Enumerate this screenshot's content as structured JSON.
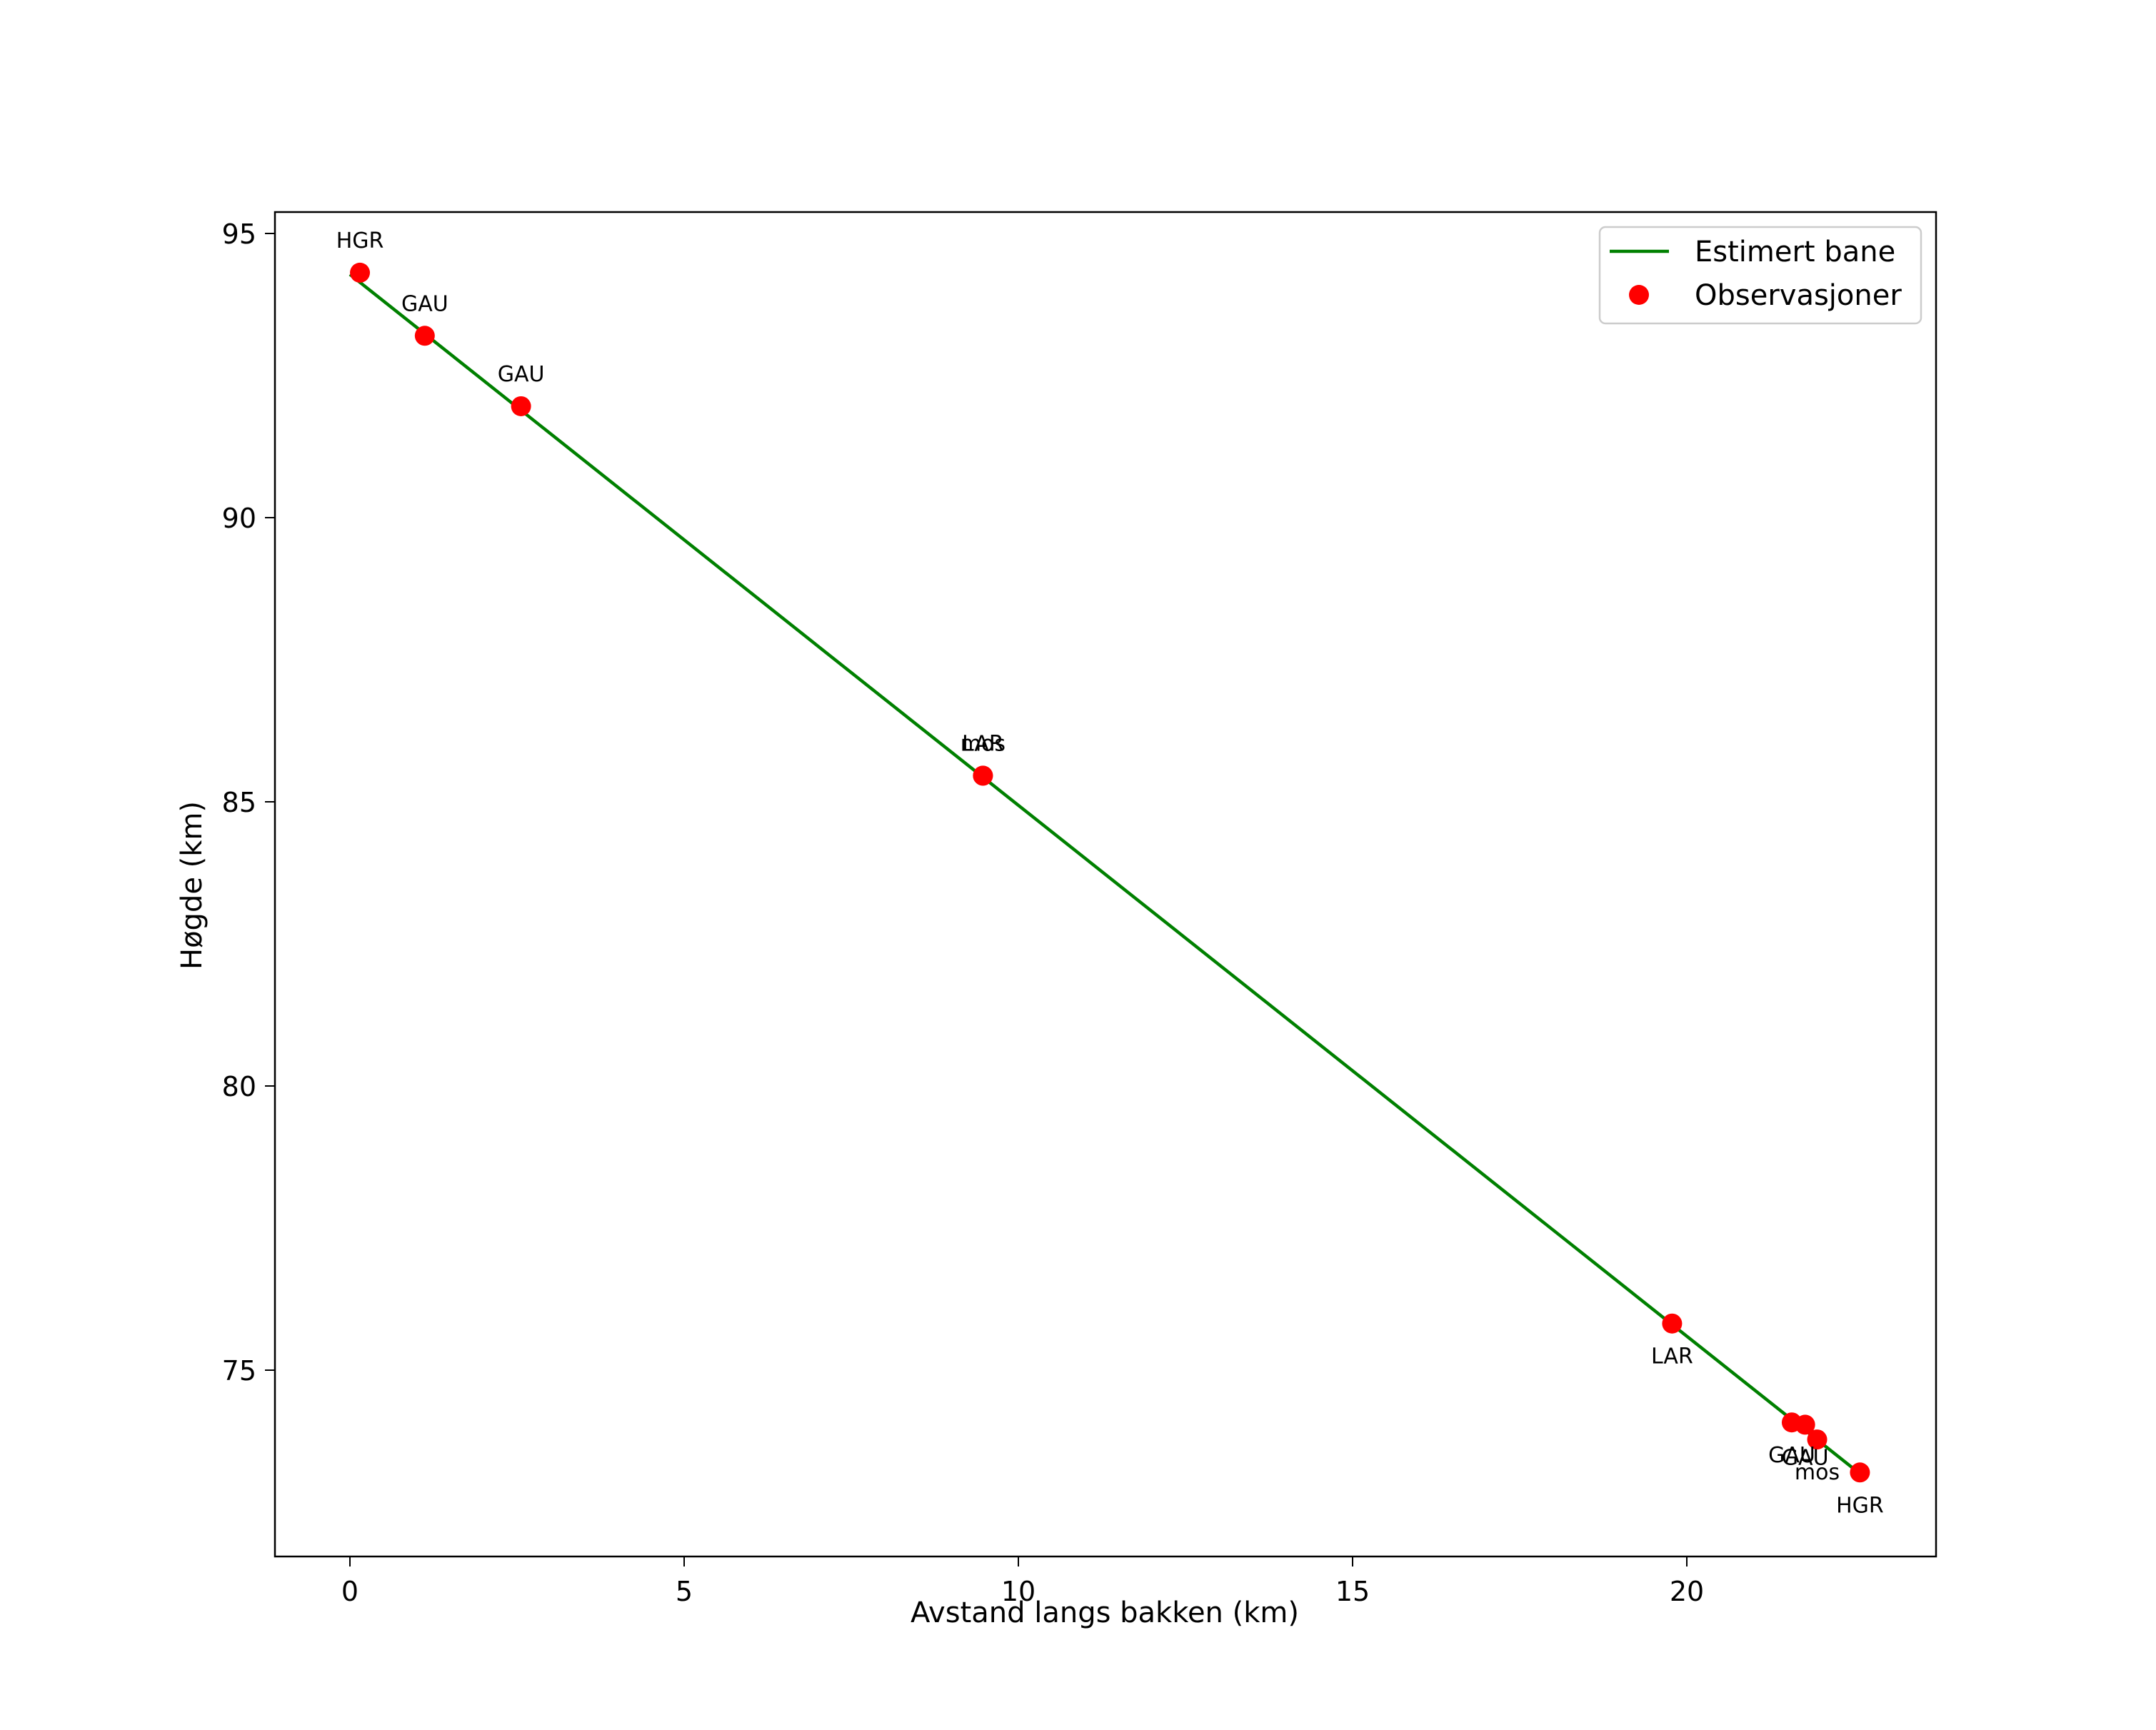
{
  "chart_data": {
    "type": "line+scatter",
    "title": "",
    "xlabel": "Avstand langs bakken (km)",
    "ylabel": "Høgde (km)",
    "xlim": [
      -1.12,
      23.73
    ],
    "ylim": [
      71.72,
      95.38
    ],
    "xticks": [
      0,
      5,
      10,
      15,
      20
    ],
    "yticks": [
      75,
      80,
      85,
      90,
      95
    ],
    "grid": false,
    "legend_position": "upper right",
    "series": [
      {
        "name": "Estimert bane",
        "kind": "line",
        "color": "#008000",
        "x": [
          0.0,
          22.47
        ],
        "y": [
          94.28,
          73.29
        ]
      },
      {
        "name": "Observasjoner",
        "kind": "scatter",
        "color": "#ff0000",
        "points": [
          {
            "x": 0.15,
            "y": 94.31,
            "label": "HGR",
            "label_pos": "above"
          },
          {
            "x": 1.12,
            "y": 93.2,
            "label": "GAU",
            "label_pos": "above"
          },
          {
            "x": 2.56,
            "y": 91.96,
            "label": "GAU",
            "label_pos": "above"
          },
          {
            "x": 9.47,
            "y": 85.46,
            "label": "LAR",
            "label_pos": "above"
          },
          {
            "x": 9.47,
            "y": 85.46,
            "label": "mos",
            "label_pos": "above"
          },
          {
            "x": 19.78,
            "y": 75.82,
            "label": "LAR",
            "label_pos": "below"
          },
          {
            "x": 21.57,
            "y": 74.08,
            "label": "GAU",
            "label_pos": "below"
          },
          {
            "x": 21.77,
            "y": 74.04,
            "label": "GAU",
            "label_pos": "below"
          },
          {
            "x": 21.95,
            "y": 73.78,
            "label": "mos",
            "label_pos": "below"
          },
          {
            "x": 22.59,
            "y": 73.2,
            "label": "HGR",
            "label_pos": "below"
          }
        ]
      }
    ]
  },
  "legend": {
    "items": [
      {
        "label": "Estimert bane",
        "marker": "line",
        "color": "#008000"
      },
      {
        "label": "Observasjoner",
        "marker": "dot",
        "color": "#ff0000"
      }
    ]
  },
  "axes": {
    "xlabel": "Avstand langs bakken (km)",
    "ylabel": "Høgde (km)",
    "xticks": [
      "0",
      "5",
      "10",
      "15",
      "20"
    ],
    "yticks": [
      "95",
      "90",
      "85",
      "80",
      "75"
    ]
  }
}
